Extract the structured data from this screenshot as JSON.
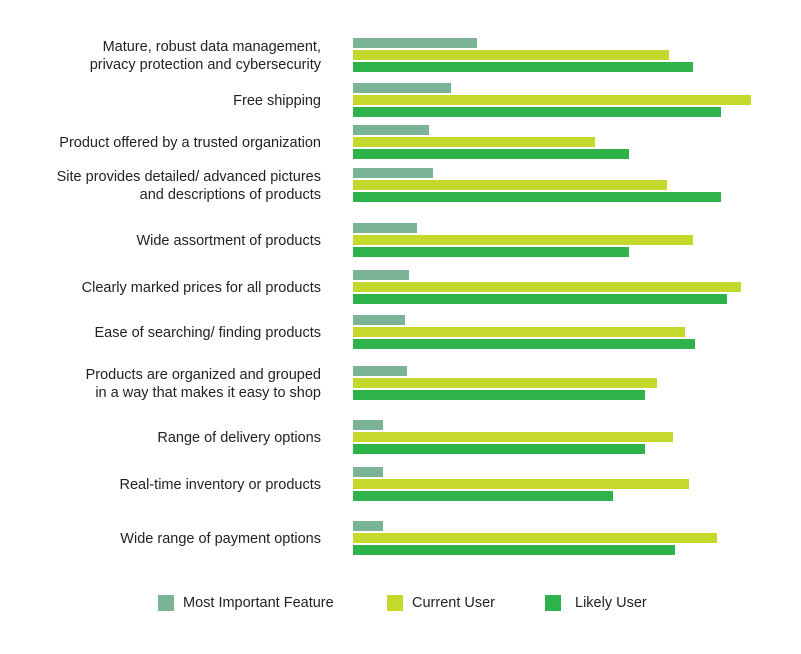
{
  "chart_data": {
    "type": "bar",
    "orientation": "horizontal",
    "title": "",
    "xlabel": "",
    "ylabel": "",
    "xlim": [
      0,
      100
    ],
    "grid": false,
    "legend_position": "bottom",
    "categories": [
      [
        "Mature, robust data management,",
        "privacy protection and cybersecurity"
      ],
      [
        "Free shipping"
      ],
      [
        "Product offered by a trusted organization"
      ],
      [
        "Site provides detailed/ advanced pictures",
        "and descriptions of products"
      ],
      [
        "Wide assortment of products"
      ],
      [
        "Clearly marked prices for all products"
      ],
      [
        "Ease of searching/ finding products"
      ],
      [
        "Products are organized and grouped",
        "in a way that makes it easy to shop"
      ],
      [
        "Range of delivery options"
      ],
      [
        "Real-time inventory or products"
      ],
      [
        "Wide range of payment options"
      ]
    ],
    "series": [
      {
        "name": "Most Important Feature",
        "color": "#7bb396",
        "values": [
          31,
          24.5,
          19,
          20,
          16,
          14,
          13,
          13.5,
          7.5,
          7.5,
          7.5
        ]
      },
      {
        "name": "Current User",
        "color": "#c5d92d",
        "values": [
          79,
          99.5,
          60.5,
          78.5,
          85,
          97,
          83,
          76,
          80,
          84,
          91
        ]
      },
      {
        "name": "Likely User",
        "color": "#2db34a",
        "values": [
          85,
          92,
          69,
          92,
          69,
          93.5,
          85.5,
          73,
          73,
          65,
          80.5
        ]
      }
    ]
  }
}
